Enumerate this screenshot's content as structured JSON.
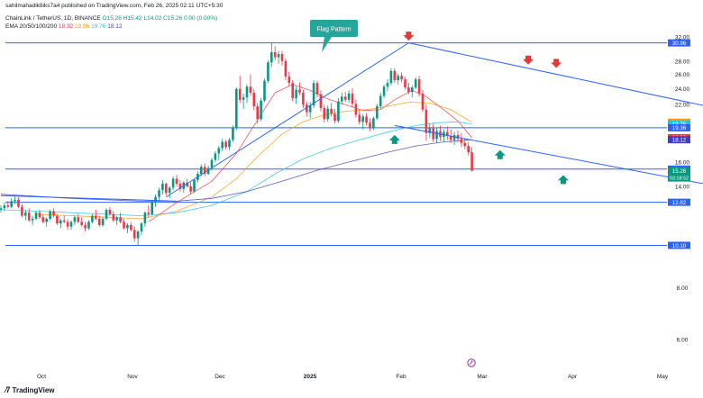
{
  "header": {
    "published": "sahilmahadik8iks7a4 published on TradingView.com, Feb 26, 2025 02:11 UTC+5:30",
    "symbol": "ChainLink / TetherUS, 1D, BINANCE",
    "ohlc": {
      "o": "O15.26",
      "h": "H15.42",
      "l": "L14.02",
      "c": "C15.26",
      "chg": "0.00 (0.00%)"
    },
    "ema_label": "EMA 20/50/100/200",
    "ema_values": {
      "e20": "18.32",
      "e50": "19.96",
      "e100": "19.76",
      "e200": "18.12"
    }
  },
  "footer": {
    "brand": "TradingView",
    "logo_icon": "tradingview-logo-icon"
  },
  "colors": {
    "up": "#089981",
    "down": "#f23645",
    "line": "#2962ff",
    "hline": "#2962ff",
    "ema20": "#f23645",
    "ema50": "#ff9800",
    "ema100": "#26c6da",
    "ema200": "#3f3fbf",
    "callout": "#26a69a"
  },
  "chart_data": {
    "type": "candlestick",
    "title": "ChainLink / TetherUS, 1D, BINANCE",
    "scale": "log",
    "ylim": [
      5,
      36
    ],
    "x_ticks": [
      "Oct",
      "Nov",
      "Dec",
      "2025",
      "Feb",
      "Mar",
      "Apr",
      "May"
    ],
    "y_ticks": [
      6.0,
      8.0,
      10.1,
      12.82,
      14.0,
      16.0,
      18.0,
      20.0,
      22.0,
      24.0,
      26.0,
      28.0,
      30.96,
      32.0
    ],
    "y_tick_labels": [
      "6.00",
      "8.00",
      "10.10",
      "12.82",
      "14.00",
      "16.00",
      "18.00",
      "20.00",
      "22.00",
      "24.00",
      "26.00",
      "28.00",
      "30.96",
      "32.00"
    ],
    "price_badges": [
      {
        "label": "30.96",
        "value": 30.96,
        "color": "#2962ff"
      },
      {
        "label": "19.96",
        "value": 19.96,
        "color": "#ff9800"
      },
      {
        "label": "19.76",
        "value": 19.76,
        "color": "#26c6da"
      },
      {
        "label": "19.36",
        "value": 19.36,
        "color": "#2962ff"
      },
      {
        "label": "18.32",
        "value": 18.32,
        "color": "#f23645"
      },
      {
        "label": "18.12",
        "value": 18.12,
        "color": "#3f3fbf"
      },
      {
        "label": "15.40",
        "value": 15.4,
        "color": "#2962ff"
      },
      {
        "label": "15.26",
        "value": 15.26,
        "color": "#089981",
        "sub": "03:18:52"
      },
      {
        "label": "12.82",
        "value": 12.82,
        "color": "#2962ff"
      },
      {
        "label": "10.10",
        "value": 10.1,
        "color": "#2962ff"
      }
    ],
    "horizontal_levels": [
      30.96,
      19.36,
      15.4,
      12.82,
      10.1
    ],
    "annotation": "Flag Pattern",
    "trendlines": [
      {
        "name": "pole",
        "from": [
          7,
          13.2
        ],
        "to": [
          76,
          30.96
        ]
      },
      {
        "name": "flag-upper",
        "from": [
          76,
          30.96
        ],
        "to": [
          170,
          21.0
        ]
      },
      {
        "name": "flag-lower",
        "from": [
          72,
          19.6
        ],
        "to": [
          180,
          13.2
        ]
      },
      {
        "name": "descending-long",
        "from": [
          -40,
          13.3
        ],
        "to": [
          10,
          12.9
        ]
      }
    ],
    "arrows": {
      "down": [
        [
          76,
          31.5
        ],
        [
          110,
          27.6
        ],
        [
          118,
          27.1
        ]
      ],
      "up": [
        [
          72,
          18.6
        ],
        [
          102,
          17.1
        ],
        [
          120,
          14.9
        ]
      ]
    },
    "candles": [
      [
        -40,
        12.3,
        12.6,
        12.1,
        12.4
      ],
      [
        -39,
        12.4,
        12.8,
        12.2,
        12.6
      ],
      [
        -38,
        12.6,
        12.9,
        12.4,
        12.5
      ],
      [
        -37,
        12.5,
        13.1,
        12.4,
        12.9
      ],
      [
        -36,
        12.9,
        13.3,
        12.7,
        13.0
      ],
      [
        -35,
        13.0,
        13.2,
        12.4,
        12.5
      ],
      [
        -34,
        12.5,
        12.7,
        11.8,
        11.9
      ],
      [
        -33,
        11.9,
        12.3,
        11.6,
        12.1
      ],
      [
        -32,
        12.1,
        12.4,
        11.5,
        11.6
      ],
      [
        -31,
        11.6,
        11.9,
        11.3,
        11.7
      ],
      [
        -30,
        11.7,
        12.2,
        11.6,
        12.1
      ],
      [
        -29,
        12.1,
        12.3,
        11.7,
        11.8
      ],
      [
        -28,
        11.8,
        12.0,
        11.4,
        11.5
      ],
      [
        -27,
        11.5,
        11.8,
        11.2,
        11.7
      ],
      [
        -26,
        11.7,
        12.3,
        11.6,
        12.2
      ],
      [
        -25,
        12.2,
        12.4,
        11.8,
        11.9
      ],
      [
        -24,
        11.9,
        12.0,
        11.3,
        11.4
      ],
      [
        -23,
        11.4,
        11.7,
        11.1,
        11.6
      ],
      [
        -22,
        11.6,
        11.9,
        11.4,
        11.5
      ],
      [
        -21,
        11.5,
        11.7,
        11.0,
        11.2
      ],
      [
        -20,
        11.2,
        11.6,
        11.0,
        11.5
      ],
      [
        -19,
        11.5,
        11.9,
        11.3,
        11.8
      ],
      [
        -18,
        11.8,
        12.0,
        11.4,
        11.5
      ],
      [
        -17,
        11.5,
        11.8,
        11.2,
        11.3
      ],
      [
        -16,
        11.3,
        11.5,
        10.9,
        11.1
      ],
      [
        -15,
        11.1,
        11.6,
        11.0,
        11.5
      ],
      [
        -14,
        11.5,
        12.0,
        11.4,
        11.9
      ],
      [
        -13,
        11.9,
        12.3,
        11.6,
        11.7
      ],
      [
        -12,
        11.7,
        11.9,
        11.2,
        11.3
      ],
      [
        -11,
        11.3,
        11.8,
        11.2,
        11.7
      ],
      [
        -10,
        11.7,
        12.4,
        11.6,
        12.3
      ],
      [
        -9,
        12.3,
        12.5,
        11.9,
        12.0
      ],
      [
        -8,
        12.0,
        12.2,
        11.5,
        11.6
      ],
      [
        -7,
        11.6,
        11.9,
        11.3,
        11.8
      ],
      [
        -6,
        11.8,
        12.1,
        11.4,
        11.5
      ],
      [
        -5,
        11.5,
        11.7,
        11.0,
        11.1
      ],
      [
        -4,
        11.1,
        11.4,
        10.8,
        11.3
      ],
      [
        -3,
        11.3,
        11.5,
        10.9,
        11.0
      ],
      [
        -2,
        11.0,
        11.2,
        10.3,
        10.5
      ],
      [
        -1,
        10.5,
        11.0,
        10.1,
        10.9
      ],
      [
        0,
        10.9,
        11.5,
        10.7,
        11.4
      ],
      [
        1,
        11.4,
        12.2,
        11.2,
        12.1
      ],
      [
        2,
        12.1,
        12.6,
        11.8,
        12.0
      ],
      [
        3,
        12.0,
        12.9,
        11.9,
        12.8
      ],
      [
        4,
        12.8,
        13.4,
        12.5,
        13.2
      ],
      [
        5,
        13.2,
        13.9,
        12.9,
        13.7
      ],
      [
        6,
        13.7,
        14.5,
        13.4,
        14.2
      ],
      [
        7,
        14.2,
        14.3,
        13.3,
        13.5
      ],
      [
        8,
        13.5,
        14.0,
        13.1,
        13.9
      ],
      [
        9,
        13.9,
        14.8,
        13.7,
        14.6
      ],
      [
        10,
        14.6,
        14.9,
        14.0,
        14.2
      ],
      [
        11,
        14.2,
        14.5,
        13.6,
        13.8
      ],
      [
        12,
        13.8,
        14.4,
        13.5,
        14.3
      ],
      [
        13,
        14.3,
        14.6,
        13.9,
        14.0
      ],
      [
        14,
        14.0,
        14.3,
        13.4,
        13.6
      ],
      [
        15,
        13.6,
        14.6,
        13.5,
        14.5
      ],
      [
        16,
        14.5,
        15.2,
        14.3,
        15.0
      ],
      [
        17,
        15.0,
        15.8,
        14.8,
        15.6
      ],
      [
        18,
        15.6,
        15.9,
        14.8,
        15.0
      ],
      [
        19,
        15.0,
        15.7,
        14.9,
        15.5
      ],
      [
        20,
        15.5,
        16.4,
        15.3,
        16.2
      ],
      [
        21,
        16.2,
        17.0,
        16.0,
        16.8
      ],
      [
        22,
        16.8,
        17.5,
        16.2,
        17.3
      ],
      [
        23,
        17.3,
        18.2,
        17.0,
        17.9
      ],
      [
        24,
        17.9,
        18.1,
        17.2,
        17.4
      ],
      [
        25,
        17.4,
        18.3,
        17.1,
        18.1
      ],
      [
        26,
        18.1,
        19.6,
        17.9,
        19.4
      ],
      [
        27,
        19.4,
        24.2,
        19.1,
        24.0
      ],
      [
        28,
        24.0,
        25.8,
        22.2,
        22.6
      ],
      [
        29,
        22.6,
        23.4,
        21.5,
        22.9
      ],
      [
        30,
        22.9,
        24.6,
        22.2,
        24.3
      ],
      [
        31,
        24.3,
        26.0,
        23.1,
        23.5
      ],
      [
        32,
        23.5,
        24.0,
        21.3,
        21.8
      ],
      [
        33,
        21.8,
        22.2,
        19.8,
        20.3
      ],
      [
        34,
        20.3,
        22.8,
        20.1,
        22.5
      ],
      [
        35,
        22.5,
        25.4,
        22.3,
        25.1
      ],
      [
        36,
        25.1,
        28.1,
        24.8,
        27.8
      ],
      [
        37,
        27.8,
        30.96,
        27.1,
        29.4
      ],
      [
        38,
        29.4,
        30.4,
        28.1,
        28.6
      ],
      [
        39,
        28.6,
        29.6,
        27.6,
        29.1
      ],
      [
        40,
        29.1,
        29.6,
        27.3,
        28.0
      ],
      [
        41,
        28.0,
        28.4,
        25.2,
        25.7
      ],
      [
        42,
        25.7,
        26.4,
        24.3,
        24.8
      ],
      [
        43,
        24.8,
        25.2,
        22.4,
        22.8
      ],
      [
        44,
        22.8,
        24.3,
        22.1,
        23.9
      ],
      [
        45,
        23.9,
        24.9,
        23.2,
        23.5
      ],
      [
        46,
        23.5,
        23.9,
        21.6,
        22.0
      ],
      [
        47,
        22.0,
        22.4,
        20.6,
        21.1
      ],
      [
        48,
        21.1,
        22.3,
        20.4,
        21.9
      ],
      [
        49,
        21.9,
        25.2,
        21.6,
        24.8
      ],
      [
        50,
        24.8,
        25.1,
        22.9,
        23.3
      ],
      [
        51,
        23.3,
        23.8,
        21.2,
        21.6
      ],
      [
        52,
        21.6,
        22.0,
        19.9,
        20.3
      ],
      [
        53,
        20.3,
        21.9,
        20.0,
        21.5
      ],
      [
        54,
        21.5,
        22.2,
        20.6,
        20.9
      ],
      [
        55,
        20.9,
        21.5,
        19.8,
        20.1
      ],
      [
        56,
        20.1,
        22.8,
        19.9,
        22.4
      ],
      [
        57,
        22.4,
        23.5,
        22.0,
        23.0
      ],
      [
        58,
        23.0,
        23.6,
        22.3,
        22.6
      ],
      [
        59,
        22.6,
        23.8,
        22.2,
        23.4
      ],
      [
        60,
        23.4,
        24.1,
        21.7,
        22.1
      ],
      [
        61,
        22.1,
        22.6,
        20.5,
        20.8
      ],
      [
        62,
        20.8,
        21.3,
        19.7,
        20.0
      ],
      [
        63,
        20.0,
        20.9,
        19.2,
        20.6
      ],
      [
        64,
        20.6,
        21.0,
        19.6,
        19.9
      ],
      [
        65,
        19.9,
        20.4,
        19.0,
        19.3
      ],
      [
        66,
        19.3,
        20.6,
        19.1,
        20.4
      ],
      [
        67,
        20.4,
        22.1,
        20.2,
        21.8
      ],
      [
        68,
        21.8,
        23.5,
        21.5,
        23.1
      ],
      [
        69,
        23.1,
        24.6,
        22.8,
        24.3
      ],
      [
        70,
        24.3,
        25.3,
        23.7,
        24.8
      ],
      [
        71,
        24.8,
        26.9,
        24.5,
        26.5
      ],
      [
        72,
        26.5,
        26.9,
        24.8,
        25.2
      ],
      [
        73,
        25.2,
        26.1,
        24.6,
        25.8
      ],
      [
        74,
        25.8,
        26.3,
        24.9,
        25.3
      ],
      [
        75,
        25.3,
        25.7,
        23.9,
        24.2
      ],
      [
        76,
        24.2,
        24.8,
        23.3,
        23.6
      ],
      [
        77,
        23.6,
        24.5,
        22.9,
        24.2
      ],
      [
        78,
        24.2,
        25.6,
        24.0,
        25.3
      ],
      [
        79,
        25.3,
        25.8,
        23.0,
        23.4
      ],
      [
        80,
        23.4,
        23.9,
        21.1,
        21.4
      ],
      [
        81,
        21.4,
        22.0,
        18.0,
        18.8
      ],
      [
        82,
        18.8,
        19.8,
        18.3,
        19.3
      ],
      [
        83,
        19.3,
        19.8,
        17.9,
        18.2
      ],
      [
        84,
        18.2,
        19.4,
        17.8,
        19.0
      ],
      [
        85,
        19.0,
        19.6,
        18.0,
        18.4
      ],
      [
        86,
        18.4,
        19.2,
        17.9,
        18.9
      ],
      [
        87,
        18.9,
        19.5,
        18.1,
        18.5
      ],
      [
        88,
        18.5,
        19.2,
        17.8,
        18.1
      ],
      [
        89,
        18.1,
        18.9,
        17.6,
        18.6
      ],
      [
        90,
        18.6,
        19.1,
        17.9,
        18.2
      ],
      [
        91,
        18.2,
        18.8,
        17.4,
        17.8
      ],
      [
        92,
        17.8,
        18.3,
        17.2,
        17.5
      ],
      [
        93,
        17.5,
        17.9,
        16.6,
        16.9
      ],
      [
        94,
        16.9,
        17.4,
        15.2,
        15.26
      ]
    ],
    "ema": {
      "ema20": [
        [
          2,
          11.5
        ],
        [
          10,
          12.8
        ],
        [
          20,
          14.4
        ],
        [
          27,
          16.8
        ],
        [
          33,
          20.2
        ],
        [
          38,
          23.5
        ],
        [
          43,
          24.6
        ],
        [
          48,
          23.8
        ],
        [
          53,
          22.7
        ],
        [
          58,
          22.0
        ],
        [
          63,
          21.3
        ],
        [
          68,
          21.4
        ],
        [
          72,
          22.6
        ],
        [
          77,
          23.8
        ],
        [
          81,
          23.0
        ],
        [
          86,
          21.4
        ],
        [
          90,
          20.1
        ],
        [
          94,
          18.32
        ]
      ],
      "ema50": [
        [
          -30,
          12.0
        ],
        [
          -10,
          11.8
        ],
        [
          0,
          11.7
        ],
        [
          10,
          12.2
        ],
        [
          20,
          13.2
        ],
        [
          27,
          14.6
        ],
        [
          33,
          16.5
        ],
        [
          40,
          18.7
        ],
        [
          46,
          20.0
        ],
        [
          52,
          20.8
        ],
        [
          58,
          21.2
        ],
        [
          64,
          21.4
        ],
        [
          70,
          21.8
        ],
        [
          76,
          22.3
        ],
        [
          82,
          22.2
        ],
        [
          88,
          21.4
        ],
        [
          94,
          19.96
        ]
      ],
      "ema100": [
        [
          -40,
          12.3
        ],
        [
          -20,
          12.1
        ],
        [
          0,
          11.9
        ],
        [
          10,
          12.1
        ],
        [
          20,
          12.6
        ],
        [
          30,
          13.6
        ],
        [
          38,
          15.0
        ],
        [
          46,
          16.3
        ],
        [
          54,
          17.3
        ],
        [
          62,
          18.1
        ],
        [
          70,
          18.9
        ],
        [
          78,
          19.6
        ],
        [
          84,
          19.9
        ],
        [
          90,
          20.0
        ],
        [
          94,
          19.76
        ]
      ],
      "ema200": [
        [
          -40,
          13.4
        ],
        [
          -20,
          13.1
        ],
        [
          0,
          12.9
        ],
        [
          10,
          12.9
        ],
        [
          20,
          13.1
        ],
        [
          30,
          13.6
        ],
        [
          40,
          14.4
        ],
        [
          50,
          15.3
        ],
        [
          60,
          16.1
        ],
        [
          70,
          16.9
        ],
        [
          78,
          17.5
        ],
        [
          86,
          17.9
        ],
        [
          94,
          18.12
        ]
      ]
    }
  }
}
